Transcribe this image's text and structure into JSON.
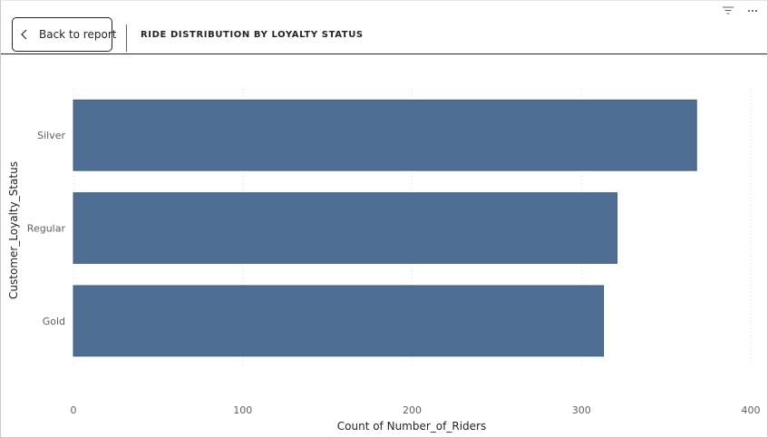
{
  "header": {
    "back_label": "Back to report",
    "title": "RIDE DISTRIBUTION BY LOYALTY STATUS",
    "filter_icon": "filter-icon",
    "more_icon": "more-options-icon",
    "back_icon": "chevron-left-icon"
  },
  "colors": {
    "bar": "#4e6e93",
    "bar_border": "#3f5d7e",
    "gridline": "#e1e1e1",
    "text": "#605e5c"
  },
  "chart_data": {
    "type": "bar",
    "orientation": "horizontal",
    "categories": [
      "Silver",
      "Regular",
      "Gold"
    ],
    "values": [
      368,
      321,
      313
    ],
    "xlabel": "Count of Number_of_Riders",
    "ylabel": "Customer_Loyalty_Status",
    "xlim": [
      0,
      400
    ],
    "xticks": [
      0,
      100,
      200,
      300,
      400
    ],
    "grid": true
  }
}
